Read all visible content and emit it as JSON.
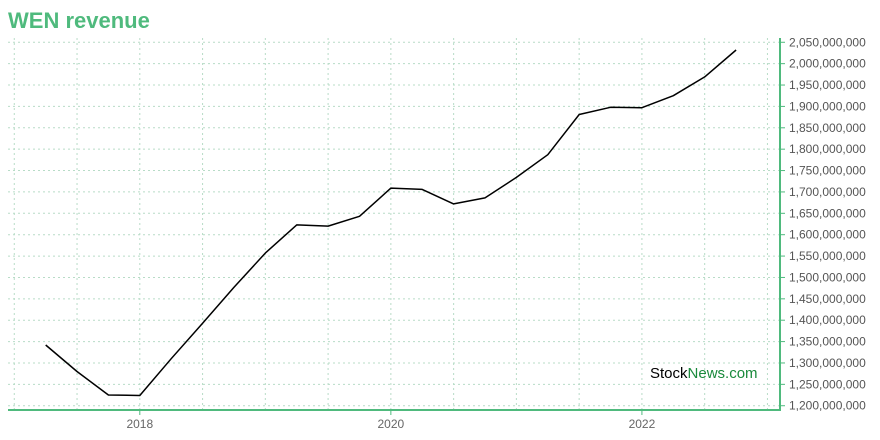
{
  "header": {
    "title": "WEN revenue"
  },
  "watermark": {
    "part1": "Stock",
    "part2": "News",
    "part3": ".com"
  },
  "colors": {
    "title": "#4fba7d",
    "axis": "#4fba7d",
    "grid": "#b8dcc7",
    "line": "#000000"
  },
  "chart_data": {
    "type": "line",
    "title": "WEN revenue",
    "xlabel": "",
    "ylabel": "",
    "x_ticks": [
      2018,
      2020,
      2022
    ],
    "xlim": [
      2016.95,
      2023.1
    ],
    "ylim": [
      1190000000,
      2060000000
    ],
    "y_ticks": [
      1200000000,
      1250000000,
      1300000000,
      1350000000,
      1400000000,
      1450000000,
      1500000000,
      1550000000,
      1600000000,
      1650000000,
      1700000000,
      1750000000,
      1800000000,
      1850000000,
      1900000000,
      1950000000,
      2000000000,
      2050000000
    ],
    "y_tick_labels": [
      "1,200,000,000",
      "1,250,000,000",
      "1,300,000,000",
      "1,350,000,000",
      "1,400,000,000",
      "1,450,000,000",
      "1,500,000,000",
      "1,550,000,000",
      "1,600,000,000",
      "1,650,000,000",
      "1,700,000,000",
      "1,750,000,000",
      "1,800,000,000",
      "1,850,000,000",
      "1,900,000,000",
      "1,950,000,000",
      "2,000,000,000",
      "2,050,000,000"
    ],
    "grid": true,
    "series": [
      {
        "x": [
          2017.25,
          2017.5,
          2017.75,
          2018.0,
          2018.25,
          2018.5,
          2018.75,
          2019.0,
          2019.25,
          2019.5,
          2019.75,
          2020.0,
          2020.25,
          2020.5,
          2020.75,
          2021.0,
          2021.25,
          2021.5,
          2021.75,
          2022.0,
          2022.25,
          2022.5,
          2022.75
        ],
        "y": [
          1342000000,
          1280000000,
          1225000000,
          1224000000,
          1310000000,
          1393000000,
          1477000000,
          1557000000,
          1623000000,
          1620000000,
          1643000000,
          1709000000,
          1706000000,
          1672000000,
          1686000000,
          1734000000,
          1787000000,
          1881000000,
          1898000000,
          1897000000,
          1925000000,
          1969000000,
          2032000000
        ]
      }
    ]
  }
}
